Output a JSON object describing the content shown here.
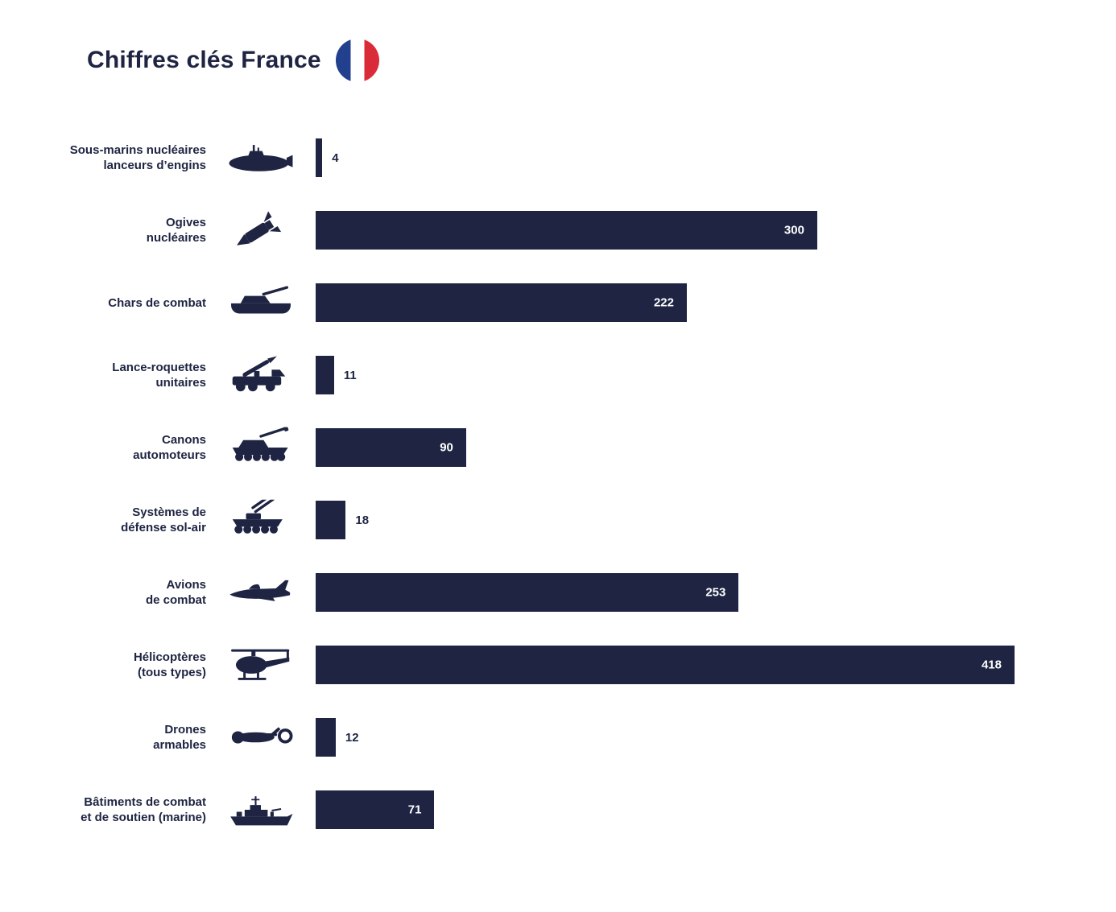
{
  "header": {
    "title": "Chiffres clés France"
  },
  "colors": {
    "background": "#ffffff",
    "bar": "#1e2442",
    "text": "#1e2442",
    "value_inside": "#ffffff",
    "flag_blue": "#23408e",
    "flag_white": "#ffffff",
    "flag_red": "#da2c38"
  },
  "chart_data": {
    "type": "bar",
    "orientation": "horizontal",
    "title": "Chiffres clés France",
    "xlabel": "",
    "ylabel": "",
    "xlim": [
      0,
      418
    ],
    "grid": false,
    "legend": "none",
    "value_labels": "inside bar for large values, outside right of bar for small values",
    "categories": [
      "Sous-marins nucléaires lanceurs d’engins",
      "Ogives nucléaires",
      "Chars de combat",
      "Lance-roquettes unitaires",
      "Canons automoteurs",
      "Systèmes de défense sol-air",
      "Avions de combat",
      "Hélicoptères (tous types)",
      "Drones armables",
      "Bâtiments de combat et de soutien (marine)"
    ],
    "values": [
      4,
      300,
      222,
      11,
      90,
      18,
      253,
      418,
      12,
      71
    ],
    "rows": [
      {
        "label_lines": [
          "Sous-marins nucléaires",
          "lanceurs d’engins"
        ],
        "value": 4,
        "icon": "submarine-icon",
        "value_inside": false
      },
      {
        "label_lines": [
          "Ogives",
          "nucléaires"
        ],
        "value": 300,
        "icon": "missile-icon",
        "value_inside": true
      },
      {
        "label_lines": [
          "Chars de combat"
        ],
        "value": 222,
        "icon": "tank-icon",
        "value_inside": true
      },
      {
        "label_lines": [
          "Lance-roquettes",
          "unitaires"
        ],
        "value": 11,
        "icon": "rocket-launcher-icon",
        "value_inside": false
      },
      {
        "label_lines": [
          "Canons",
          "automoteurs"
        ],
        "value": 90,
        "icon": "howitzer-icon",
        "value_inside": true
      },
      {
        "label_lines": [
          "Systèmes de",
          "défense sol-air"
        ],
        "value": 18,
        "icon": "air-defense-icon",
        "value_inside": false
      },
      {
        "label_lines": [
          "Avions",
          "de combat"
        ],
        "value": 253,
        "icon": "fighter-jet-icon",
        "value_inside": true
      },
      {
        "label_lines": [
          "Hélicoptères",
          "(tous types)"
        ],
        "value": 418,
        "icon": "helicopter-icon",
        "value_inside": true
      },
      {
        "label_lines": [
          "Drones",
          "armables"
        ],
        "value": 12,
        "icon": "drone-icon",
        "value_inside": false
      },
      {
        "label_lines": [
          "Bâtiments de combat",
          "et de soutien (marine)"
        ],
        "value": 71,
        "icon": "warship-icon",
        "value_inside": true
      }
    ]
  }
}
